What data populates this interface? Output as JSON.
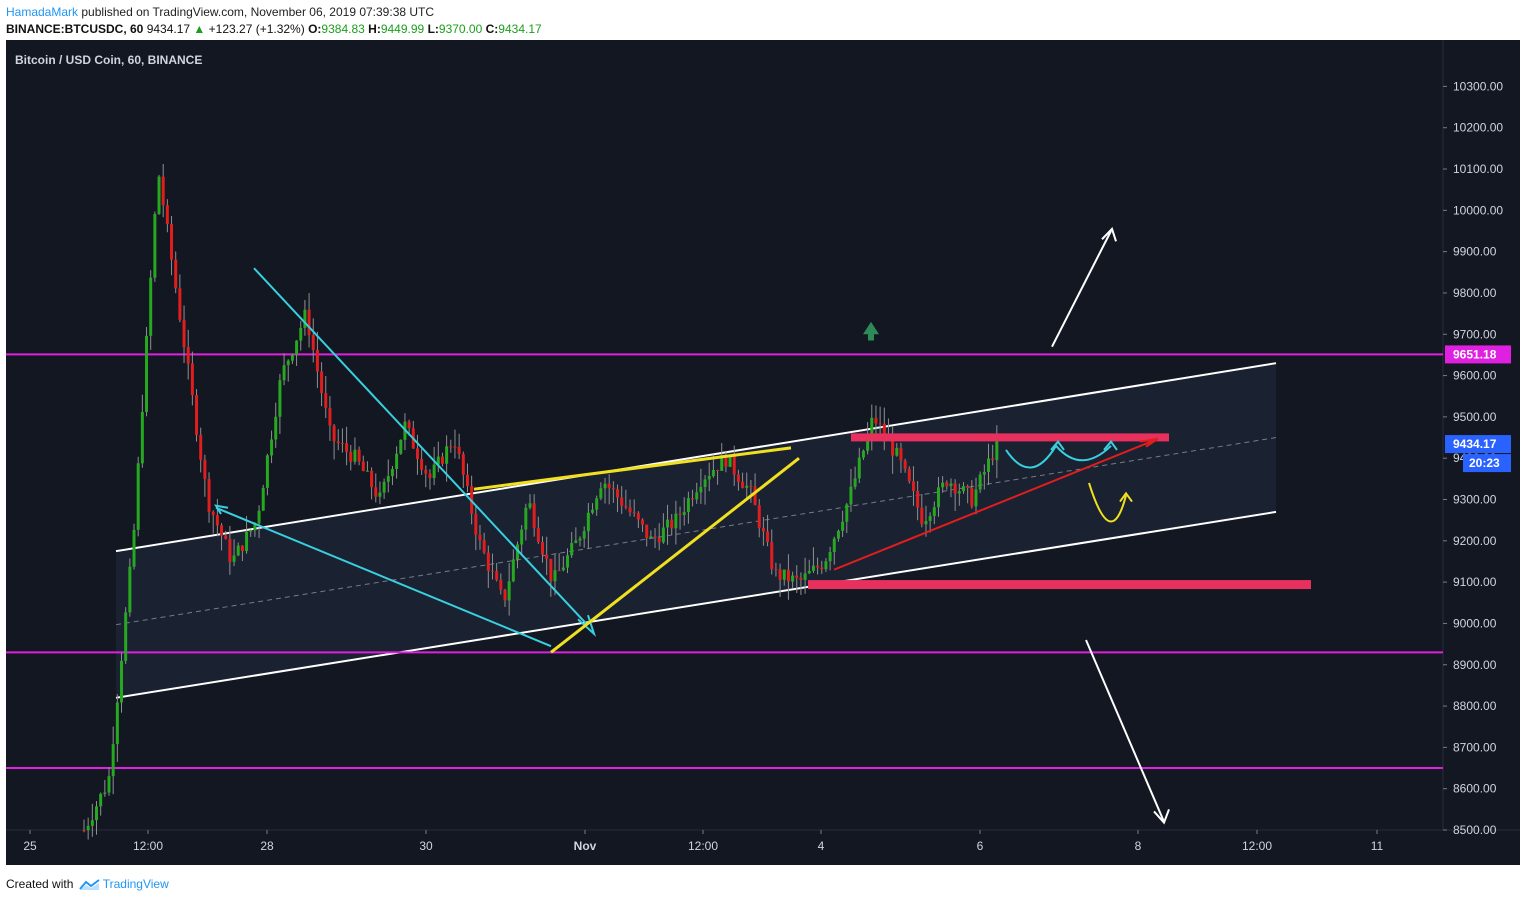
{
  "header": {
    "author": "HamadaMark",
    "published": "published on TradingView.com, November 06, 2019 07:39:38 UTC",
    "symbol": "BINANCE:BTCUSDC, 60",
    "last": "9434.17",
    "change": "+123.27 (+1.32%)",
    "o_label": "O:",
    "o": "9384.83",
    "h_label": "H:",
    "h": "9449.99",
    "l_label": "L:",
    "l": "9370.00",
    "c_label": "C:",
    "c": "9434.17"
  },
  "footer": {
    "created_with": "Created with",
    "brand": "TradingView"
  },
  "colors": {
    "background": "#131722",
    "bull": "#26a820",
    "bear": "#e01e1e",
    "magenta": "#e020e0",
    "cyan": "#38d0e0",
    "yellow": "#f0e020",
    "pink_zone": "#e8305e",
    "channel": "#ffffff",
    "up_arrow": "#2e8b57"
  },
  "chart_data": {
    "type": "candlestick",
    "title": "Bitcoin / USD Coin, 60, BINANCE",
    "ylim": [
      8500,
      10330
    ],
    "y_ticks": [
      "10300.00",
      "10200.00",
      "10100.00",
      "10000.00",
      "9900.00",
      "9800.00",
      "9700.00",
      "9600.00",
      "9500.00",
      "9400.00",
      "9300.00",
      "9200.00",
      "9100.00",
      "9000.00",
      "8900.00",
      "8800.00",
      "8700.00",
      "8600.00",
      "8500.00"
    ],
    "x_ticks": [
      "25",
      "12:00",
      "28",
      "30",
      "Nov",
      "12:00",
      "4",
      "6",
      "8",
      "12:00",
      "11"
    ],
    "price_labels": {
      "level": "9651.18",
      "last": "9434.17",
      "countdown": "20:23"
    },
    "horizontal_levels": [
      9651.18,
      8930,
      8650
    ],
    "resistance_zone": 9450,
    "support_zone": 9095,
    "channel_upper": [
      [
        9175,
        9630
      ]
    ],
    "channel_lower": [
      [
        8820,
        9270
      ]
    ],
    "candles_ohlc_sample_points": [
      8500,
      8620,
      9200,
      10100,
      9700,
      9300,
      9150,
      9250,
      9600,
      9750,
      9450,
      9400,
      9300,
      9480,
      9350,
      9450,
      9200,
      9050,
      9300,
      9100,
      9200,
      9350,
      9280,
      9200,
      9250,
      9350,
      9400,
      9320,
      9120,
      9100,
      9150,
      9300,
      9500,
      9400,
      9250,
      9350,
      9300,
      9434
    ]
  }
}
